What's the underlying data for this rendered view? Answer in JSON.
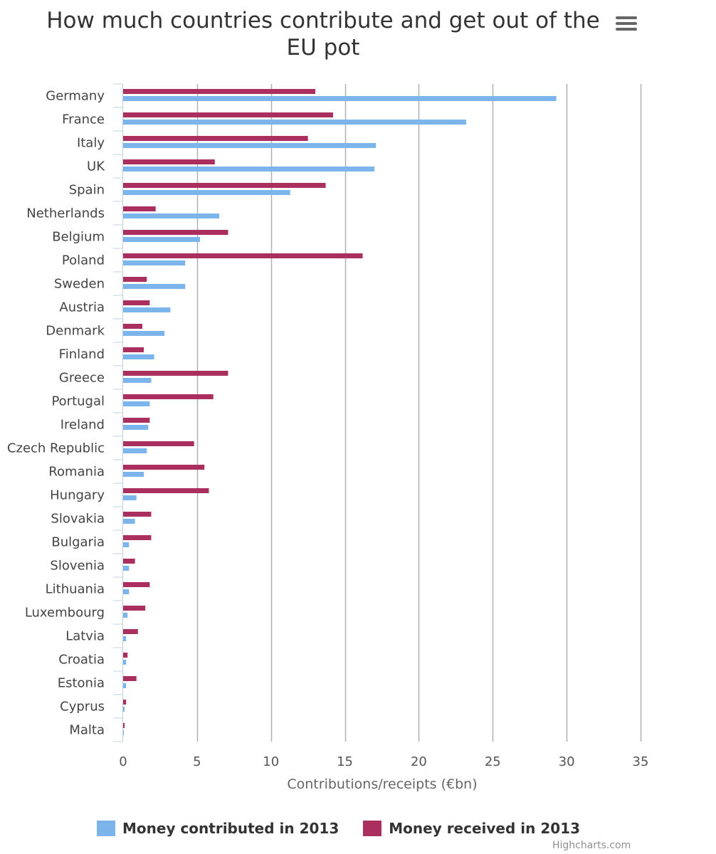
{
  "chart_data": {
    "type": "bar",
    "orientation": "horizontal",
    "title": "How much countries contribute and get out of the EU pot",
    "xlabel": "Contributions/receipts (€bn)",
    "xlim": [
      0,
      35
    ],
    "ticks": [
      0,
      5,
      10,
      15,
      20,
      25,
      30,
      35
    ],
    "grid": true,
    "legend_position": "bottom",
    "categories": [
      "Germany",
      "France",
      "Italy",
      "UK",
      "Spain",
      "Netherlands",
      "Belgium",
      "Poland",
      "Sweden",
      "Austria",
      "Denmark",
      "Finland",
      "Greece",
      "Portugal",
      "Ireland",
      "Czech Republic",
      "Romania",
      "Hungary",
      "Slovakia",
      "Bulgaria",
      "Slovenia",
      "Lithuania",
      "Luxembourg",
      "Latvia",
      "Croatia",
      "Estonia",
      "Cyprus",
      "Malta"
    ],
    "series": [
      {
        "name": "Money received in 2013",
        "color": "#ab2f5e",
        "values": [
          13.0,
          14.2,
          12.5,
          6.2,
          13.7,
          2.2,
          7.1,
          16.2,
          1.6,
          1.8,
          1.3,
          1.4,
          7.1,
          6.1,
          1.8,
          4.8,
          5.5,
          5.8,
          1.9,
          1.9,
          0.8,
          1.8,
          1.5,
          1.0,
          0.3,
          0.9,
          0.2,
          0.1
        ]
      },
      {
        "name": "Money contributed in 2013",
        "color": "#7cb5ec",
        "values": [
          29.3,
          23.2,
          17.1,
          17.0,
          11.3,
          6.5,
          5.2,
          4.2,
          4.2,
          3.2,
          2.8,
          2.1,
          1.9,
          1.8,
          1.7,
          1.6,
          1.4,
          0.9,
          0.8,
          0.4,
          0.4,
          0.4,
          0.3,
          0.2,
          0.2,
          0.2,
          0.1,
          0.05
        ]
      }
    ]
  },
  "legend": {
    "contributed_label": "Money contributed in 2013",
    "received_label": "Money received in 2013"
  },
  "menu": {
    "icon": "hamburger-menu-icon"
  },
  "credits": "Highcharts.com"
}
